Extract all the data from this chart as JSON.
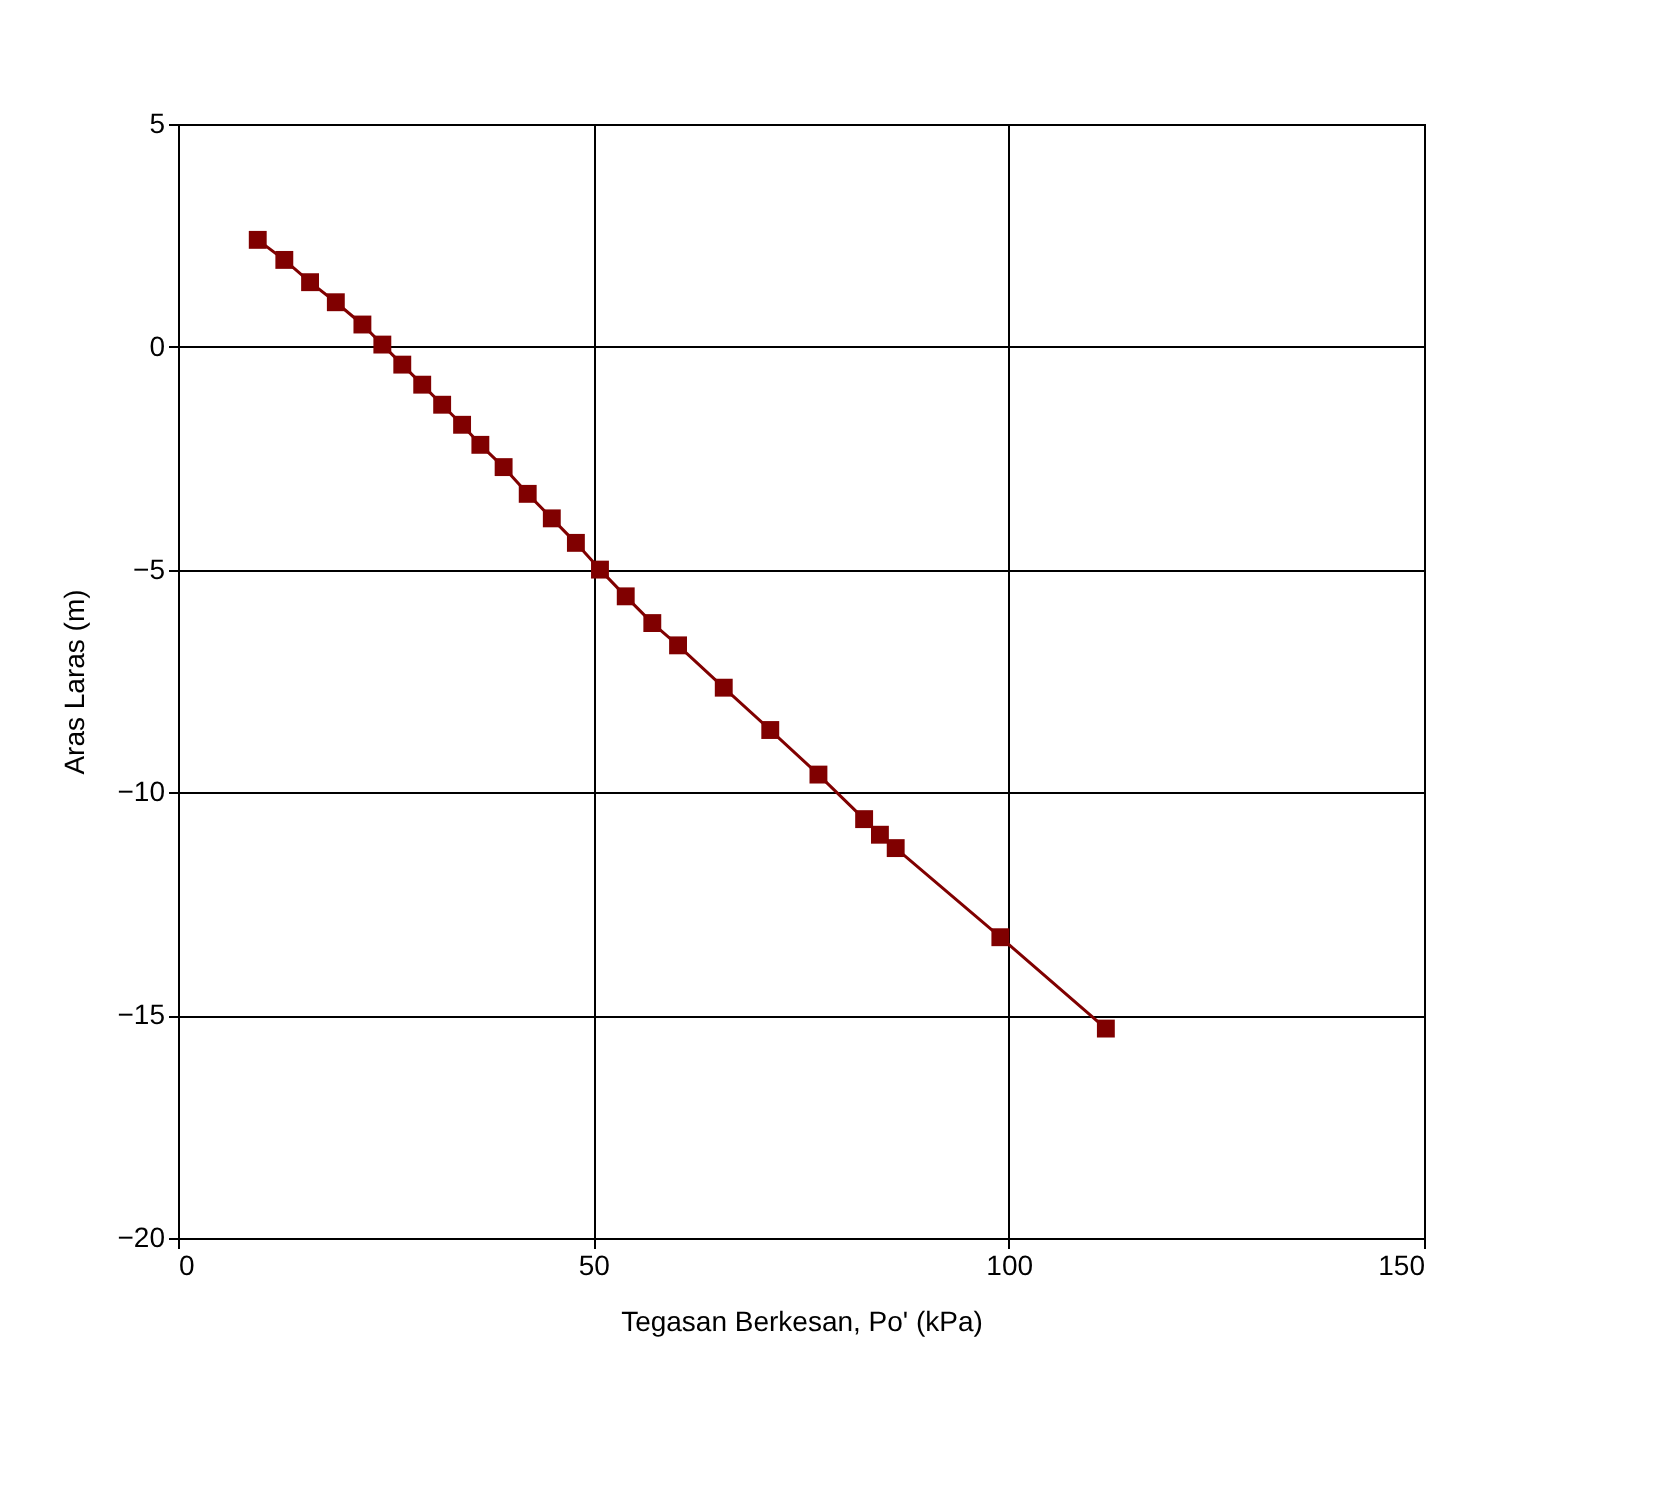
{
  "chart_data": {
    "type": "line",
    "xlabel": "Tegasan Berkesan, Po' (kPa)",
    "ylabel": "Aras Laras (m)",
    "x": [
      9.6,
      12.8,
      15.9,
      19.0,
      22.2,
      24.6,
      27.0,
      29.4,
      31.8,
      34.2,
      36.4,
      39.2,
      42.1,
      45.0,
      47.9,
      50.8,
      53.9,
      57.1,
      60.2,
      65.7,
      71.3,
      77.1,
      82.6,
      84.5,
      86.4,
      99.0,
      111.7
    ],
    "series": [
      {
        "color": "#800000",
        "values": [
          2.4,
          1.95,
          1.45,
          1.0,
          0.5,
          0.05,
          -0.4,
          -0.85,
          -1.3,
          -1.75,
          -2.2,
          -2.7,
          -3.3,
          -3.85,
          -4.4,
          -5.0,
          -5.6,
          -6.2,
          -6.7,
          -7.65,
          -8.6,
          -9.6,
          -10.6,
          -10.95,
          -11.25,
          -13.25,
          -15.3
        ]
      }
    ],
    "xlim": [
      0,
      150
    ],
    "xticks": [
      0,
      50,
      100,
      150
    ],
    "ylim": [
      -20,
      5
    ],
    "yticks": [
      -20,
      -15,
      -10,
      -5,
      0,
      5
    ],
    "grid": true,
    "marker": "square",
    "line_style": "solid"
  }
}
